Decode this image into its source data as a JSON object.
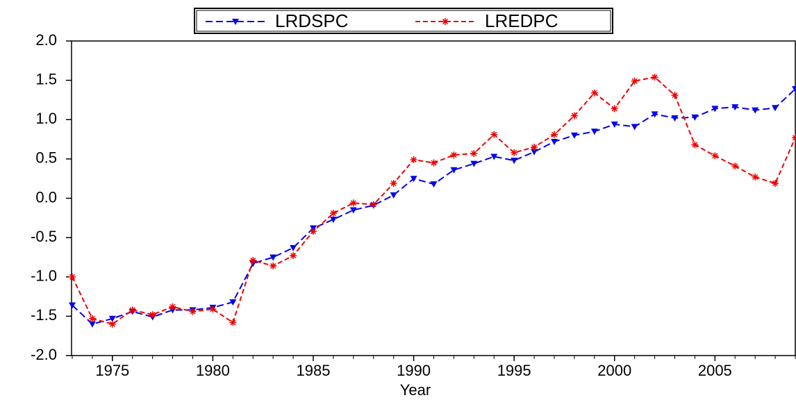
{
  "chart_data": {
    "type": "line",
    "x_label": "Year",
    "x": [
      1973,
      1974,
      1975,
      1976,
      1977,
      1978,
      1979,
      1980,
      1981,
      1982,
      1983,
      1984,
      1985,
      1986,
      1987,
      1988,
      1989,
      1990,
      1991,
      1992,
      1993,
      1994,
      1995,
      1996,
      1997,
      1998,
      1999,
      2000,
      2001,
      2002,
      2003,
      2004,
      2005,
      2006,
      2007,
      2008,
      2009
    ],
    "series": [
      {
        "name": "LRDSPC",
        "color": "#0000ee",
        "marker": "triangle-down",
        "dash": "long",
        "values": [
          -1.36,
          -1.6,
          -1.53,
          -1.44,
          -1.51,
          -1.42,
          -1.42,
          -1.39,
          -1.32,
          -0.83,
          -0.75,
          -0.63,
          -0.38,
          -0.27,
          -0.15,
          -0.09,
          0.04,
          0.25,
          0.18,
          0.36,
          0.44,
          0.53,
          0.48,
          0.59,
          0.72,
          0.8,
          0.85,
          0.94,
          0.91,
          1.07,
          1.02,
          1.03,
          1.14,
          1.16,
          1.12,
          1.15,
          1.39
        ]
      },
      {
        "name": "LREDPC",
        "color": "#ee0000",
        "marker": "asterisk",
        "dash": "short",
        "values": [
          -1.0,
          -1.53,
          -1.6,
          -1.42,
          -1.48,
          -1.38,
          -1.44,
          -1.41,
          -1.58,
          -0.79,
          -0.86,
          -0.73,
          -0.42,
          -0.19,
          -0.06,
          -0.08,
          0.19,
          0.49,
          0.45,
          0.55,
          0.57,
          0.81,
          0.58,
          0.65,
          0.81,
          1.05,
          1.34,
          1.14,
          1.49,
          1.54,
          1.31,
          0.68,
          0.54,
          0.41,
          0.27,
          0.19,
          0.77
        ]
      }
    ],
    "xlim": [
      1973,
      2009
    ],
    "xticks": [
      1975,
      1980,
      1985,
      1990,
      1995,
      2000,
      2005
    ],
    "ylim": [
      -2,
      2
    ],
    "yticks": [
      {
        "value": -2,
        "label": "-2.0"
      },
      -1.5,
      {
        "value": -1,
        "label": "-1.0"
      },
      -0.5,
      {
        "value": 0,
        "label": "0.0"
      },
      0.5,
      {
        "value": 1,
        "label": "1.0"
      },
      1.5,
      {
        "value": 2,
        "label": "2.0"
      }
    ],
    "legend": "top",
    "grid": false
  }
}
